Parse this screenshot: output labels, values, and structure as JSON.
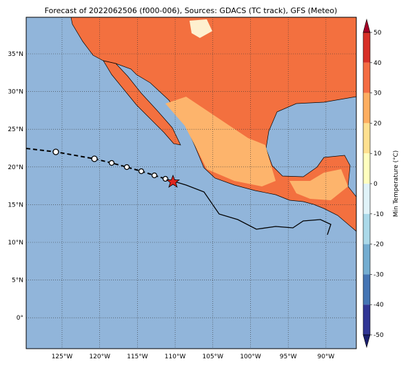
{
  "title": "Forecast of 2022062506 (f000-006), Sources: GDACS (TC track), GFS (Meteo)",
  "lat_labels": [
    "35°N",
    "30°N",
    "25°N",
    "20°N",
    "15°N",
    "10°N",
    "5°N",
    "0°"
  ],
  "lon_labels": [
    "125°W",
    "120°W",
    "115°W",
    "110°W",
    "105°W",
    "100°W",
    "95°W",
    "90°W"
  ],
  "colorbar": {
    "label": "Min Temperature (°C)",
    "ticks": [
      50,
      40,
      30,
      20,
      10,
      0,
      -10,
      -20,
      -30,
      -40,
      -50
    ],
    "colors": [
      "#a50026",
      "#d73027",
      "#f46d43",
      "#fdae61",
      "#fee090",
      "#ffffbf",
      "#e0f3f8",
      "#abd9e9",
      "#74add1",
      "#4575b4",
      "#313695",
      "#1a1f6e"
    ]
  }
}
